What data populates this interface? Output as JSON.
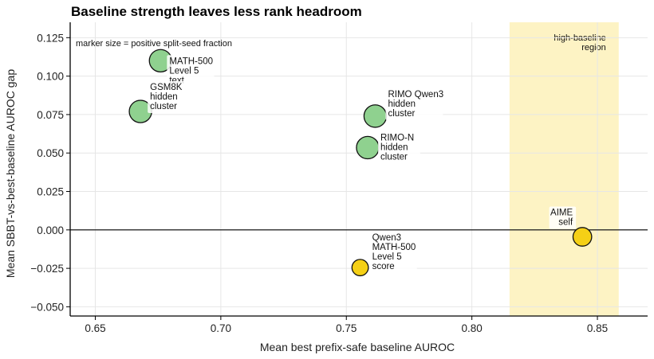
{
  "chart_data": {
    "type": "scatter",
    "title": "Baseline strength leaves less rank headroom",
    "xlabel": "Mean best prefix-safe baseline AUROC",
    "ylabel": "Mean SBBT-vs-best-baseline AUROC gap",
    "xlim": [
      0.64,
      0.87
    ],
    "ylim": [
      -0.056,
      0.135
    ],
    "xticks": [
      0.65,
      0.7,
      0.75,
      0.8,
      0.85
    ],
    "xtick_labels": [
      "0.65",
      "0.70",
      "0.75",
      "0.80",
      "0.85"
    ],
    "yticks": [
      -0.05,
      -0.025,
      0.0,
      0.025,
      0.05,
      0.075,
      0.1,
      0.125
    ],
    "ytick_labels": [
      "−0.050",
      "−0.025",
      "0.000",
      "0.025",
      "0.050",
      "0.075",
      "0.100",
      "0.125"
    ],
    "grid": true,
    "reference_line_y": 0.0,
    "size_note": "marker size = positive split-seed fraction",
    "region": {
      "x0": 0.815,
      "x1": 0.8585,
      "label": [
        "high-baseline",
        "region"
      ],
      "color": "#fdf3c4"
    },
    "colors": {
      "positive": "#8fd18f",
      "nonpositive": "#f5d016",
      "edge": "#111111"
    },
    "points": [
      {
        "x": 0.676,
        "y": 0.11,
        "size_fraction": 0.85,
        "color": "positive",
        "label": [
          "MATH-500",
          "Level 5",
          "text"
        ]
      },
      {
        "x": 0.668,
        "y": 0.077,
        "size_fraction": 0.85,
        "color": "positive",
        "label": [
          "GSM8K",
          "hidden",
          "cluster"
        ]
      },
      {
        "x": 0.7615,
        "y": 0.074,
        "size_fraction": 0.85,
        "color": "positive",
        "label": [
          "RIMO Qwen3",
          "hidden",
          "cluster"
        ]
      },
      {
        "x": 0.7585,
        "y": 0.0535,
        "size_fraction": 0.85,
        "color": "positive",
        "label": [
          "RIMO-N",
          "hidden",
          "cluster"
        ]
      },
      {
        "x": 0.7555,
        "y": -0.0245,
        "size_fraction": 0.45,
        "color": "nonpositive",
        "label": [
          "Qwen3",
          "MATH-500",
          "Level 5",
          "score"
        ]
      },
      {
        "x": 0.844,
        "y": -0.0045,
        "size_fraction": 0.6,
        "color": "nonpositive",
        "label": [
          "AIME",
          "self"
        ]
      }
    ]
  }
}
